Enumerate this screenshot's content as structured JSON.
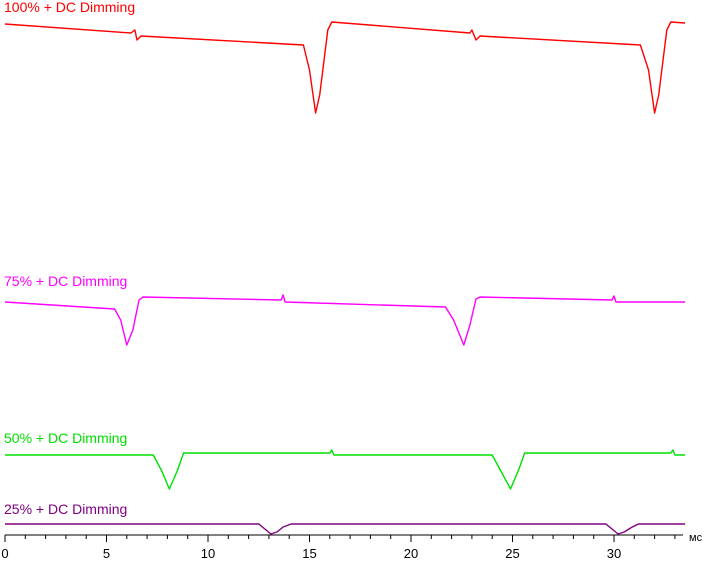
{
  "chart_data": {
    "type": "line",
    "x_unit": "мс",
    "x_range": [
      0,
      33.5
    ],
    "x_ticks": [
      0,
      5,
      10,
      15,
      20,
      25,
      30
    ],
    "minor_tick_step": 1,
    "grid": false,
    "series": [
      {
        "name": "100% + DC Dimming",
        "color": "#ff0000",
        "points": [
          [
            0,
            24
          ],
          [
            6.2,
            33
          ],
          [
            6.4,
            30
          ],
          [
            6.5,
            40
          ],
          [
            6.7,
            36
          ],
          [
            14.7,
            45
          ],
          [
            15.0,
            70
          ],
          [
            15.3,
            113
          ],
          [
            15.5,
            95
          ],
          [
            15.9,
            30
          ],
          [
            16.1,
            22
          ],
          [
            22.9,
            33
          ],
          [
            23.0,
            30
          ],
          [
            23.2,
            40
          ],
          [
            23.4,
            36
          ],
          [
            31.3,
            45
          ],
          [
            31.7,
            70
          ],
          [
            32.0,
            113
          ],
          [
            32.2,
            95
          ],
          [
            32.6,
            30
          ],
          [
            32.8,
            22
          ],
          [
            33.5,
            23
          ]
        ]
      },
      {
        "name": "75% + DC Dimming",
        "color": "#ff00ff",
        "points": [
          [
            0,
            302
          ],
          [
            5.4,
            309
          ],
          [
            5.7,
            320
          ],
          [
            6.0,
            345
          ],
          [
            6.3,
            330
          ],
          [
            6.6,
            300
          ],
          [
            6.8,
            297
          ],
          [
            13.6,
            300
          ],
          [
            13.7,
            295
          ],
          [
            13.8,
            302
          ],
          [
            21.7,
            307
          ],
          [
            22.1,
            320
          ],
          [
            22.6,
            345
          ],
          [
            22.9,
            325
          ],
          [
            23.2,
            299
          ],
          [
            23.4,
            297
          ],
          [
            29.9,
            300
          ],
          [
            30.0,
            296
          ],
          [
            30.1,
            302
          ],
          [
            33.5,
            302
          ]
        ]
      },
      {
        "name": "50% + DC Dimming",
        "color": "#00e000",
        "points": [
          [
            0,
            455
          ],
          [
            7.3,
            455
          ],
          [
            7.7,
            470
          ],
          [
            8.1,
            489
          ],
          [
            8.5,
            470
          ],
          [
            8.8,
            453
          ],
          [
            16.0,
            453
          ],
          [
            16.1,
            450
          ],
          [
            16.2,
            455
          ],
          [
            24.0,
            455
          ],
          [
            24.4,
            470
          ],
          [
            24.9,
            489
          ],
          [
            25.3,
            470
          ],
          [
            25.6,
            453
          ],
          [
            32.8,
            453
          ],
          [
            32.9,
            450
          ],
          [
            33.0,
            455
          ],
          [
            33.5,
            455
          ]
        ]
      },
      {
        "name": "25% + DC Dimming",
        "color": "#800080",
        "points": [
          [
            0,
            524
          ],
          [
            12.5,
            524
          ],
          [
            13.1,
            534
          ],
          [
            13.4,
            532
          ],
          [
            13.7,
            527
          ],
          [
            14.1,
            524
          ],
          [
            29.6,
            524
          ],
          [
            30.2,
            534
          ],
          [
            30.5,
            532
          ],
          [
            30.9,
            527
          ],
          [
            31.2,
            524
          ],
          [
            33.5,
            524
          ]
        ]
      }
    ]
  }
}
